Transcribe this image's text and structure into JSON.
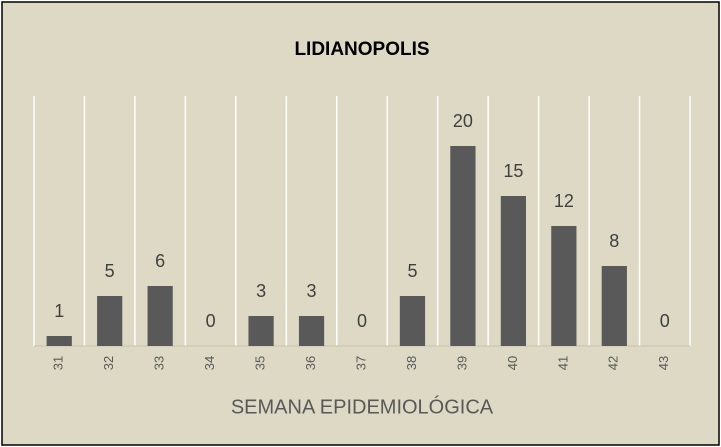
{
  "chart_data": {
    "type": "bar",
    "title": "LIDIANOPOLIS",
    "x_label": "SEMANA EPIDEMIOLÓGICA",
    "categories": [
      "31",
      "32",
      "33",
      "34",
      "35",
      "36",
      "37",
      "38",
      "39",
      "40",
      "41",
      "42",
      "43"
    ],
    "values": [
      1,
      5,
      6,
      0,
      3,
      3,
      0,
      5,
      20,
      15,
      12,
      8,
      0
    ],
    "color": "#595959",
    "ylim": [
      0,
      25
    ],
    "grid": true
  }
}
